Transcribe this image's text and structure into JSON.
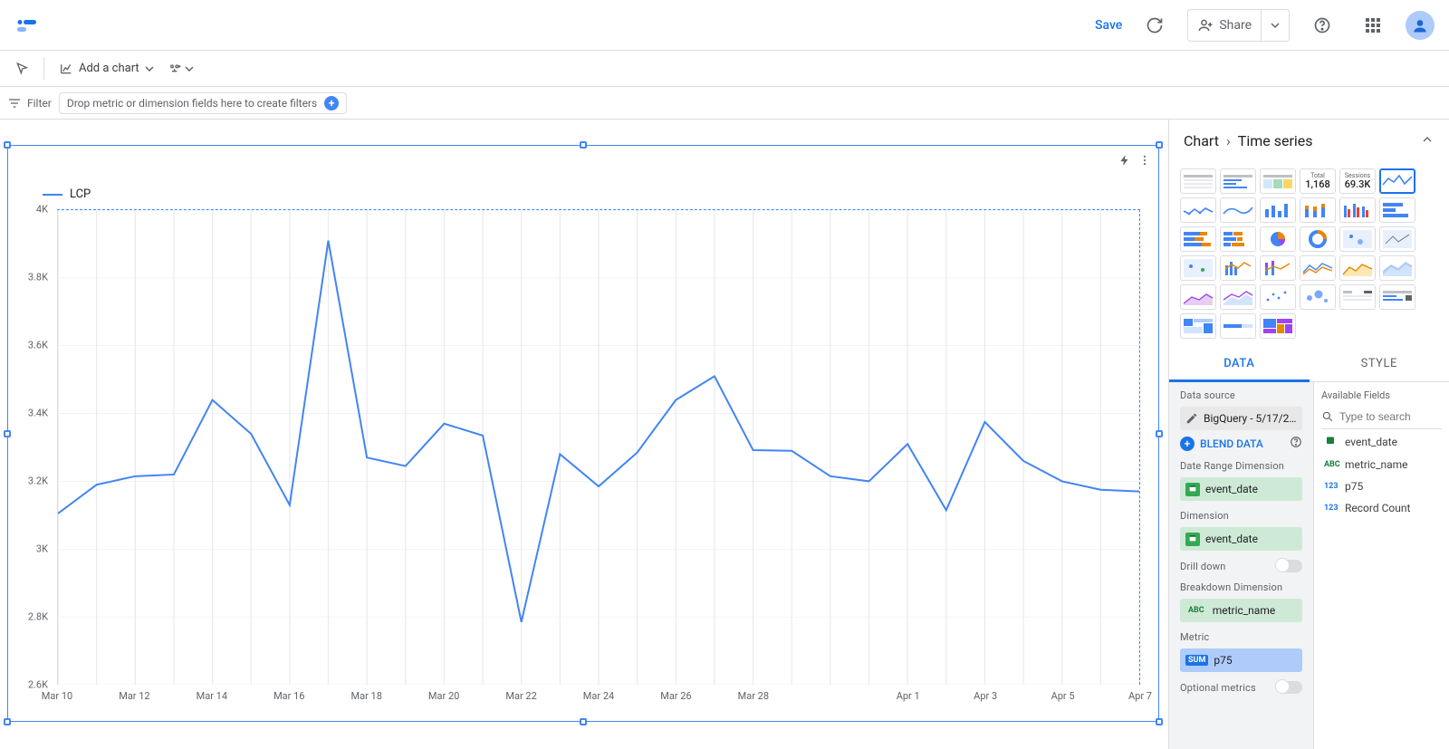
{
  "topbar": {
    "save_label": "Save",
    "share_label": "Share"
  },
  "toolbar": {
    "add_chart_label": "Add a chart"
  },
  "filterbar": {
    "filter_label": "Filter",
    "drop_hint": "Drop metric or dimension fields here to create filters"
  },
  "panel": {
    "title": "Chart",
    "subtitle": "Time series",
    "scorecards": [
      {
        "title": "Total",
        "value": "1,168"
      },
      {
        "title": "Sessions",
        "value": "69.3K"
      }
    ],
    "tabs": {
      "data": "DATA",
      "style": "STYLE"
    },
    "data_source_title": "Data source",
    "data_source_value": "BigQuery - 5/17/2…",
    "blend_label": "BLEND DATA",
    "date_range_title": "Date Range Dimension",
    "date_range_field": "event_date",
    "dimension_title": "Dimension",
    "dimension_field": "event_date",
    "drill_down_title": "Drill down",
    "breakdown_title": "Breakdown Dimension",
    "breakdown_field": "metric_name",
    "metric_title": "Metric",
    "metric_field": "p75",
    "metric_agg": "SUM",
    "optional_metrics_title": "Optional metrics",
    "available_title": "Available Fields",
    "search_placeholder": "Type to search",
    "available_fields": [
      {
        "type": "cal",
        "name": "event_date"
      },
      {
        "type": "abc",
        "name": "metric_name"
      },
      {
        "type": "num",
        "name": "p75"
      },
      {
        "type": "num",
        "name": "Record Count"
      }
    ]
  },
  "chart": {
    "type": "line",
    "legend_label": "LCP",
    "line_color": "#4285f4",
    "line_width": 2,
    "background_color": "#ffffff",
    "grid_color": "#e8eaed",
    "ylim": [
      2600,
      4000
    ],
    "ytick_step": 200,
    "yticks": [
      "2.6K",
      "2.8K",
      "3K",
      "3.2K",
      "3.4K",
      "3.6K",
      "3.8K",
      "4K"
    ],
    "x_labels": [
      "Mar 10",
      "Mar 12",
      "Mar 14",
      "Mar 16",
      "Mar 18",
      "Mar 20",
      "Mar 22",
      "Mar 24",
      "Mar 26",
      "Mar 28",
      "",
      "Apr 1",
      "Apr 3",
      "Apr 5",
      "Apr 7"
    ],
    "x_tick_indices": [
      0,
      2,
      4,
      6,
      8,
      10,
      12,
      14,
      16,
      18,
      20,
      22,
      24,
      26,
      28
    ],
    "series": [
      {
        "x": 0,
        "y": 3105
      },
      {
        "x": 1,
        "y": 3190
      },
      {
        "x": 2,
        "y": 3215
      },
      {
        "x": 3,
        "y": 3220
      },
      {
        "x": 4,
        "y": 3440
      },
      {
        "x": 5,
        "y": 3340
      },
      {
        "x": 6,
        "y": 3130
      },
      {
        "x": 7,
        "y": 3910
      },
      {
        "x": 8,
        "y": 3270
      },
      {
        "x": 9,
        "y": 3245
      },
      {
        "x": 10,
        "y": 3370
      },
      {
        "x": 11,
        "y": 3335
      },
      {
        "x": 12,
        "y": 2785
      },
      {
        "x": 13,
        "y": 3280
      },
      {
        "x": 14,
        "y": 3185
      },
      {
        "x": 15,
        "y": 3285
      },
      {
        "x": 16,
        "y": 3440
      },
      {
        "x": 17,
        "y": 3510
      },
      {
        "x": 18,
        "y": 3292
      },
      {
        "x": 19,
        "y": 3290
      },
      {
        "x": 20,
        "y": 3215
      },
      {
        "x": 21,
        "y": 3200
      },
      {
        "x": 22,
        "y": 3310
      },
      {
        "x": 23,
        "y": 3115
      },
      {
        "x": 24,
        "y": 3375
      },
      {
        "x": 25,
        "y": 3260
      },
      {
        "x": 26,
        "y": 3200
      },
      {
        "x": 27,
        "y": 3175
      },
      {
        "x": 28,
        "y": 3170
      }
    ],
    "x_count": 29
  }
}
